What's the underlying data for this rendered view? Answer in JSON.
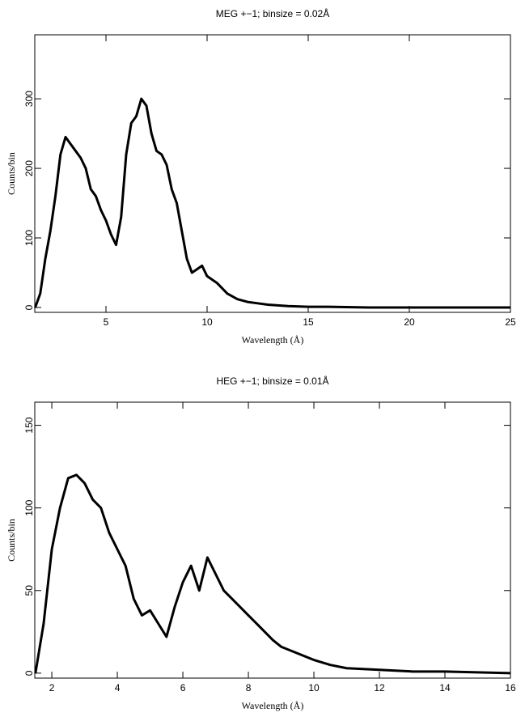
{
  "chart_data": [
    {
      "type": "line",
      "title": "MEG +−1; binsize = 0.02Å",
      "xlabel": "Wavelength (Å)",
      "ylabel": "Counts/bin",
      "x": [
        1.5,
        1.75,
        2.0,
        2.25,
        2.5,
        2.75,
        3.0,
        3.25,
        3.5,
        3.75,
        4.0,
        4.25,
        4.5,
        4.75,
        5.0,
        5.25,
        5.5,
        5.75,
        6.0,
        6.25,
        6.5,
        6.75,
        7.0,
        7.25,
        7.5,
        7.75,
        8.0,
        8.25,
        8.5,
        8.75,
        9.0,
        9.25,
        9.5,
        9.75,
        10.0,
        10.5,
        11,
        11.5,
        12,
        12.5,
        13,
        14,
        15,
        16,
        18,
        20,
        22,
        25
      ],
      "values": [
        0,
        20,
        70,
        110,
        160,
        220,
        245,
        235,
        225,
        215,
        200,
        170,
        160,
        140,
        125,
        105,
        90,
        130,
        220,
        265,
        275,
        300,
        290,
        250,
        225,
        220,
        205,
        170,
        150,
        110,
        70,
        50,
        55,
        60,
        45,
        35,
        20,
        12,
        8,
        6,
        4,
        2,
        1,
        1,
        0,
        0,
        0,
        0
      ],
      "color": "#000000",
      "xlim": [
        1.48,
        25
      ],
      "xticks": [
        5,
        10,
        15,
        20,
        25
      ],
      "ylim": [
        -7,
        392
      ],
      "yticks": [
        0,
        100,
        200,
        300
      ]
    },
    {
      "type": "line",
      "title": "HEG +−1; binsize = 0.01Å",
      "xlabel": "Wavelength (Å)",
      "ylabel": "Counts/bin",
      "x": [
        1.5,
        1.75,
        2.0,
        2.25,
        2.5,
        2.75,
        3.0,
        3.25,
        3.5,
        3.75,
        4.0,
        4.25,
        4.5,
        4.75,
        5.0,
        5.25,
        5.5,
        5.75,
        6.0,
        6.25,
        6.5,
        6.75,
        7.0,
        7.25,
        7.5,
        7.75,
        8.0,
        8.25,
        8.5,
        8.75,
        9.0,
        9.5,
        10,
        10.5,
        11,
        12,
        13,
        14,
        16
      ],
      "values": [
        0,
        30,
        75,
        100,
        118,
        120,
        115,
        105,
        100,
        85,
        75,
        65,
        45,
        35,
        38,
        30,
        22,
        40,
        55,
        65,
        50,
        70,
        60,
        50,
        45,
        40,
        35,
        30,
        25,
        20,
        16,
        12,
        8,
        5,
        3,
        2,
        1,
        1,
        0
      ],
      "color": "#000000",
      "xlim": [
        1.48,
        16
      ],
      "xticks": [
        2,
        4,
        6,
        8,
        10,
        12,
        14,
        16
      ],
      "ylim": [
        -3,
        164
      ],
      "yticks": [
        0,
        50,
        100,
        150
      ]
    }
  ]
}
